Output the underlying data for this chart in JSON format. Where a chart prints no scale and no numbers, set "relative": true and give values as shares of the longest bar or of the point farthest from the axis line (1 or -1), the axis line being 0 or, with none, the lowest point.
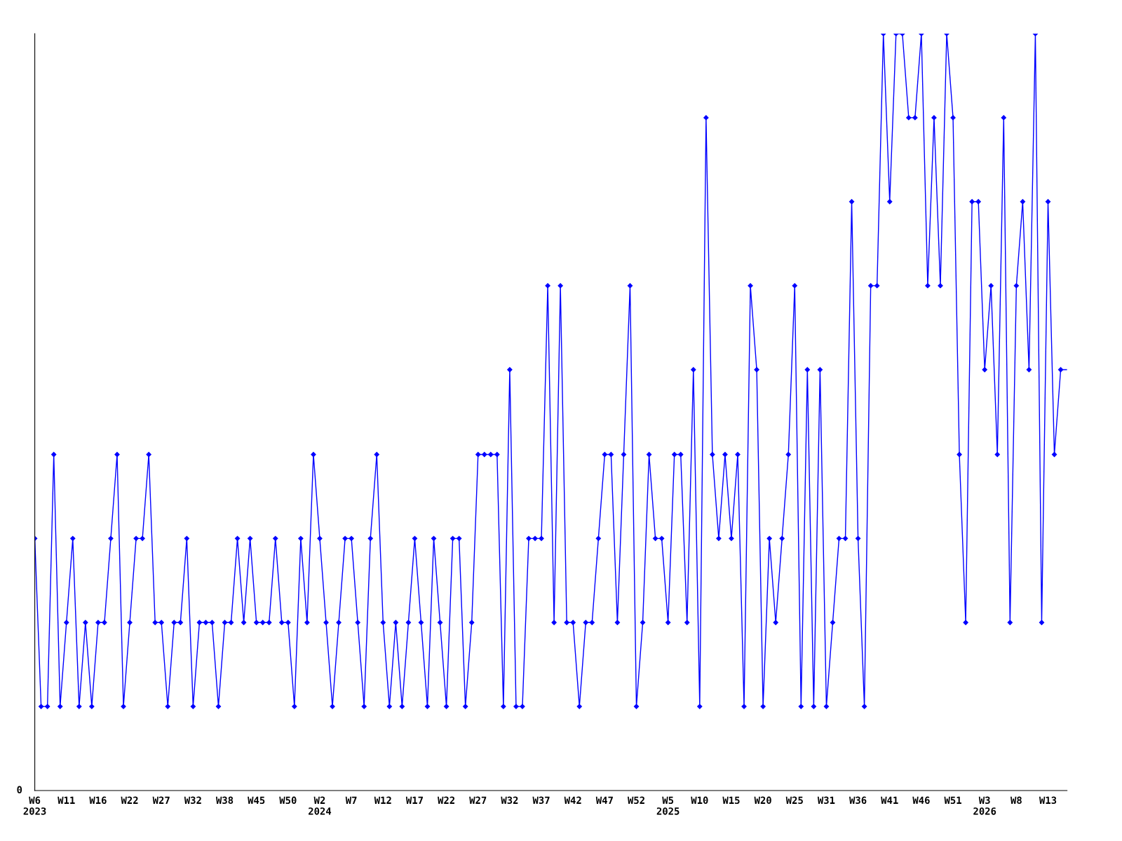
{
  "chart_data": {
    "type": "line",
    "relative": true,
    "marker": "diamond",
    "line_style": "solid",
    "grid": false,
    "legend": false,
    "annotations": [
      "0"
    ],
    "categories": [
      "W6\n2023",
      null,
      null,
      null,
      null,
      "W11",
      null,
      null,
      null,
      null,
      "W16",
      null,
      null,
      null,
      null,
      "W22",
      null,
      null,
      null,
      null,
      "W27",
      null,
      null,
      null,
      null,
      "W32",
      null,
      null,
      null,
      null,
      "W38",
      null,
      null,
      null,
      null,
      "W45",
      null,
      null,
      null,
      null,
      "W50",
      null,
      null,
      null,
      null,
      "W2\n2024",
      null,
      null,
      null,
      null,
      "W7",
      null,
      null,
      null,
      null,
      "W12",
      null,
      null,
      null,
      null,
      "W17",
      null,
      null,
      null,
      null,
      "W22",
      null,
      null,
      null,
      null,
      "W27",
      null,
      null,
      null,
      null,
      "W32",
      null,
      null,
      null,
      null,
      "W37",
      null,
      null,
      null,
      null,
      "W42",
      null,
      null,
      null,
      null,
      "W47",
      null,
      null,
      null,
      null,
      "W52",
      null,
      null,
      null,
      null,
      "W5\n2025",
      null,
      null,
      null,
      null,
      "W10",
      null,
      null,
      null,
      null,
      "W15",
      null,
      null,
      null,
      null,
      "W20",
      null,
      null,
      null,
      null,
      "W25",
      null,
      null,
      null,
      null,
      "W31",
      null,
      null,
      null,
      null,
      "W36",
      null,
      null,
      null,
      null,
      "W41",
      null,
      null,
      null,
      null,
      "W46",
      null,
      null,
      null,
      null,
      "W51",
      null,
      null,
      null,
      null,
      "W3\n2026",
      null,
      null,
      null,
      null,
      "W8",
      null,
      null,
      null,
      null,
      "W13",
      null,
      null,
      null
    ],
    "series": [
      {
        "color": "#0000ff",
        "values": [
          0.333,
          0.111,
          0.111,
          0.444,
          0.111,
          0.222,
          0.333,
          0.111,
          0.222,
          0.111,
          0.222,
          0.222,
          0.333,
          0.444,
          0.111,
          0.222,
          0.333,
          0.333,
          0.444,
          0.222,
          0.222,
          0.111,
          0.222,
          0.222,
          0.333,
          0.111,
          0.222,
          0.222,
          0.222,
          0.111,
          0.222,
          0.222,
          0.333,
          0.222,
          0.333,
          0.222,
          0.222,
          0.222,
          0.333,
          0.222,
          0.222,
          0.111,
          0.333,
          0.222,
          0.444,
          0.333,
          0.222,
          0.111,
          0.222,
          0.333,
          0.333,
          0.222,
          0.111,
          0.333,
          0.444,
          0.222,
          0.111,
          0.222,
          0.111,
          0.222,
          0.333,
          0.222,
          0.111,
          0.333,
          0.222,
          0.111,
          0.333,
          0.333,
          0.111,
          0.222,
          0.444,
          0.444,
          0.444,
          0.444,
          0.111,
          0.556,
          0.111,
          0.111,
          0.333,
          0.333,
          0.333,
          0.667,
          0.222,
          0.667,
          0.222,
          0.222,
          0.111,
          0.222,
          0.222,
          0.333,
          0.444,
          0.444,
          0.222,
          0.444,
          0.667,
          0.111,
          0.222,
          0.444,
          0.333,
          0.333,
          0.222,
          0.444,
          0.444,
          0.222,
          0.556,
          0.111,
          0.889,
          0.444,
          0.333,
          0.444,
          0.333,
          0.444,
          0.111,
          0.667,
          0.556,
          0.111,
          0.333,
          0.222,
          0.333,
          0.444,
          0.667,
          0.111,
          0.556,
          0.111,
          0.556,
          0.111,
          0.222,
          0.333,
          0.333,
          0.778,
          0.333,
          0.111,
          0.667,
          0.667,
          1,
          0.778,
          1,
          1,
          0.889,
          0.889,
          1,
          0.667,
          0.889,
          0.667,
          1,
          0.889,
          0.444,
          0.222,
          0.778,
          0.778,
          0.556,
          0.667,
          0.444,
          0.889,
          0.222,
          0.667,
          0.778,
          0.556,
          1,
          0.222,
          0.778,
          0.444,
          0.556,
          0.556
        ]
      }
    ]
  }
}
